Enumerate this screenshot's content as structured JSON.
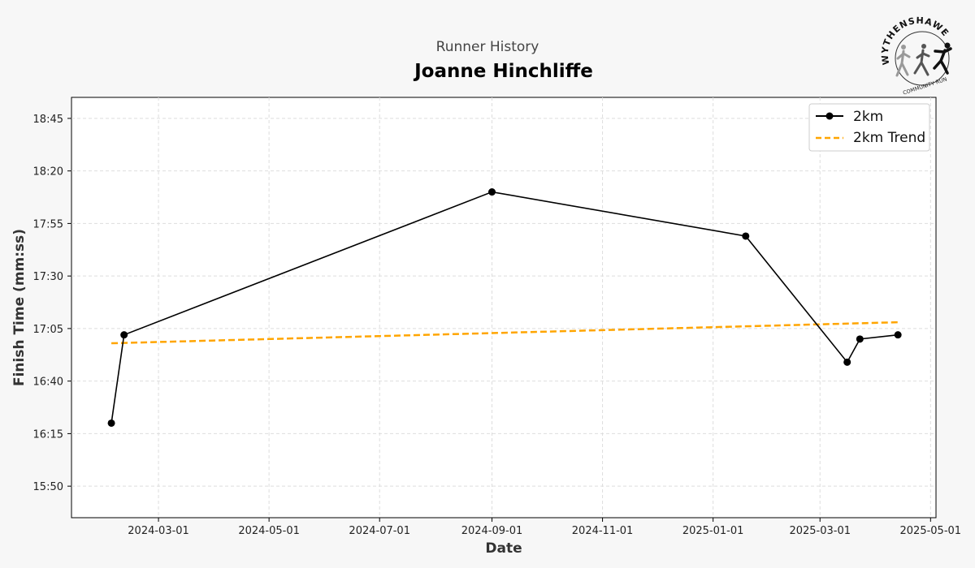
{
  "header": {
    "subtitle": "Runner History",
    "title": "Joanne Hinchliffe"
  },
  "logo": {
    "arc_text": "WYTHENSHAWE",
    "sub_text": "COMMUNITY RUN"
  },
  "colors": {
    "background": "#f7f7f7",
    "series": "#000000",
    "trend": "#ffa500",
    "grid": "#dddddd"
  },
  "chart_data": {
    "type": "line",
    "xlabel": "Date",
    "ylabel": "Finish Time (mm:ss)",
    "x_ticks": [
      "2024-03-01",
      "2024-05-01",
      "2024-07-01",
      "2024-09-01",
      "2024-11-01",
      "2025-01-01",
      "2025-03-01",
      "2025-05-01"
    ],
    "y_ticks": [
      "15:50",
      "16:15",
      "16:40",
      "17:05",
      "17:30",
      "17:55",
      "18:20",
      "18:45"
    ],
    "xlim": [
      "2024-01-13",
      "2025-05-04"
    ],
    "ylim": [
      "15:35",
      "18:55"
    ],
    "grid": true,
    "legend_position": "top-right",
    "series": [
      {
        "name": "2km",
        "style": "solid-markers",
        "points": [
          {
            "x": "2024-02-04",
            "y": "16:20"
          },
          {
            "x": "2024-02-11",
            "y": "17:02"
          },
          {
            "x": "2024-09-01",
            "y": "18:10"
          },
          {
            "x": "2025-01-19",
            "y": "17:49"
          },
          {
            "x": "2025-03-16",
            "y": "16:49"
          },
          {
            "x": "2025-03-23",
            "y": "17:00"
          },
          {
            "x": "2025-04-13",
            "y": "17:02"
          }
        ]
      },
      {
        "name": "2km Trend",
        "style": "dashed",
        "points": [
          {
            "x": "2024-02-04",
            "y": "16:58"
          },
          {
            "x": "2025-04-13",
            "y": "17:08"
          }
        ]
      }
    ]
  }
}
